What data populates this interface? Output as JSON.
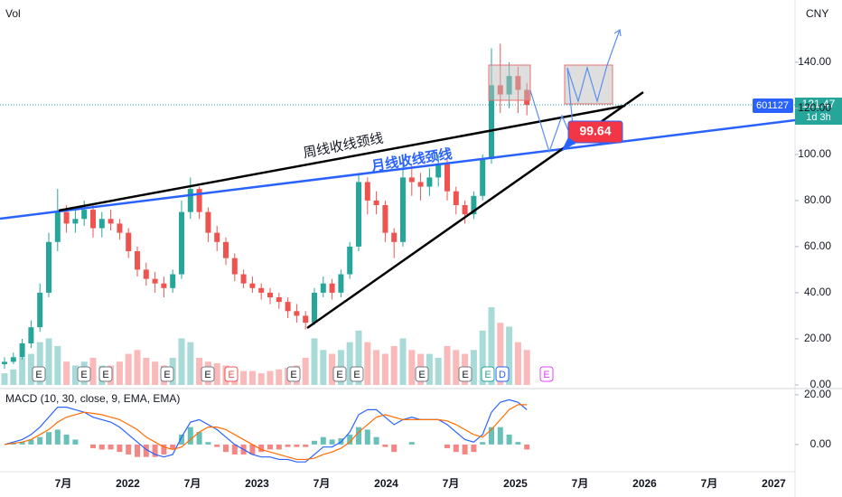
{
  "chart_data": {
    "type": "candlestick",
    "volume_label": "Vol",
    "currency": "CNY",
    "x_labels": [
      "7月",
      "2022",
      "7月",
      "2023",
      "7月",
      "2024",
      "7月",
      "2025",
      "7月",
      "2026",
      "7月",
      "2027"
    ],
    "up_color": "#26a69a",
    "down_color": "#ef5350",
    "ylim": [
      -1.6,
      167
    ],
    "yticks": [
      {
        "value": 0,
        "label": "0.00"
      },
      {
        "value": 20,
        "label": "20.00"
      },
      {
        "value": 40,
        "label": "40.00"
      },
      {
        "value": 60,
        "label": "60.00"
      },
      {
        "value": 80,
        "label": "80.00"
      },
      {
        "value": 100,
        "label": "100.00"
      },
      {
        "value": 120,
        "label": "120.00"
      },
      {
        "value": 140,
        "label": "140.00"
      }
    ],
    "ohlc": {
      "open": [
        9,
        10,
        12,
        18,
        25,
        40,
        62,
        75,
        70,
        72,
        76,
        68,
        72,
        70,
        66,
        58,
        50,
        46,
        44,
        42,
        48,
        75,
        85,
        75,
        66,
        62,
        55,
        48,
        44,
        42,
        40,
        38,
        36,
        32,
        30,
        27,
        40,
        44,
        40,
        48,
        60,
        88,
        80,
        78,
        66,
        62,
        90,
        88,
        86,
        90,
        96,
        84,
        78,
        74,
        82,
        98,
        130,
        126,
        134,
        128
      ],
      "high": [
        12,
        14,
        20,
        28,
        44,
        66,
        85,
        78,
        76,
        80,
        78,
        75,
        76,
        72,
        68,
        60,
        53,
        49,
        47,
        50,
        80,
        90,
        86,
        77,
        69,
        64,
        57,
        50,
        47,
        44,
        42,
        40,
        38,
        35,
        32,
        42,
        47,
        46,
        50,
        62,
        92,
        90,
        84,
        80,
        68,
        100,
        95,
        92,
        94,
        100,
        98,
        86,
        80,
        84,
        100,
        146,
        148,
        140,
        138,
        131
      ],
      "low": [
        7,
        9,
        11,
        16,
        23,
        38,
        58,
        66,
        66,
        69,
        64,
        64,
        67,
        63,
        55,
        47,
        43,
        40,
        38,
        40,
        46,
        72,
        72,
        62,
        58,
        52,
        45,
        42,
        40,
        37,
        35,
        33,
        29,
        27,
        24,
        26,
        38,
        37,
        38,
        46,
        58,
        74,
        74,
        62,
        55,
        60,
        82,
        80,
        82,
        86,
        80,
        74,
        70,
        72,
        80,
        96,
        118,
        120,
        118,
        117
      ],
      "close": [
        10,
        12,
        18,
        25,
        40,
        62,
        75,
        70,
        72,
        76,
        68,
        72,
        70,
        66,
        58,
        50,
        46,
        44,
        42,
        48,
        75,
        85,
        75,
        66,
        62,
        55,
        48,
        44,
        42,
        40,
        38,
        36,
        32,
        30,
        27,
        40,
        44,
        40,
        48,
        60,
        88,
        80,
        78,
        66,
        62,
        90,
        88,
        86,
        90,
        96,
        84,
        78,
        74,
        82,
        98,
        130,
        126,
        134,
        128,
        121.47
      ]
    },
    "volume": {
      "ylim": [
        0,
        100
      ],
      "values": [
        15,
        20,
        35,
        40,
        55,
        60,
        50,
        30,
        25,
        30,
        35,
        25,
        25,
        30,
        40,
        45,
        35,
        30,
        25,
        35,
        60,
        55,
        35,
        30,
        28,
        25,
        20,
        18,
        18,
        15,
        18,
        20,
        22,
        25,
        35,
        60,
        45,
        40,
        45,
        55,
        70,
        55,
        45,
        40,
        50,
        60,
        45,
        40,
        40,
        35,
        50,
        45,
        40,
        45,
        70,
        100,
        80,
        75,
        55,
        45
      ]
    },
    "symbol": "601127",
    "countdown": "1d 3h",
    "annotations": {
      "weekly_neckline": "周线收线颈线",
      "monthly_neckline": "月线收线颈线",
      "price_label": 99.64
    },
    "event_markers": [
      "E",
      "E",
      "E",
      "E",
      "E",
      "E",
      "E",
      "E",
      "E",
      "E",
      "E",
      "E",
      "D",
      "E"
    ],
    "macd": {
      "label": "MACD (10, 30, close, 9, EMA, EMA)",
      "ylim": [
        -10.2,
        22.5
      ],
      "yticks": [
        {
          "value": 0,
          "label": "0.00"
        },
        {
          "value": 20,
          "label": "20.00"
        }
      ],
      "macd": {
        "color": "#2962ff",
        "values": [
          0,
          1,
          2,
          4,
          7,
          11,
          15,
          15,
          14,
          13,
          11,
          10,
          9,
          7,
          4,
          1,
          -2,
          -4,
          -5,
          -4,
          3,
          9,
          10,
          8,
          6,
          3,
          0,
          -2,
          -4,
          -5,
          -5,
          -6,
          -6,
          -7,
          -7,
          -4,
          -1,
          -1,
          1,
          5,
          12,
          14,
          14,
          11,
          8,
          10,
          11,
          10,
          10,
          10,
          8,
          5,
          2,
          1,
          4,
          13,
          17,
          18,
          17,
          14
        ]
      },
      "signal": {
        "color": "#ff6d00",
        "values": [
          0,
          0.5,
          1,
          2,
          4,
          6,
          9,
          11,
          12,
          13,
          12.5,
          12,
          11,
          10,
          8,
          6,
          3,
          1,
          -1,
          -2,
          -1,
          2,
          5,
          7,
          7,
          6,
          4,
          2,
          0,
          -2,
          -3,
          -4,
          -5,
          -6,
          -6,
          -5.5,
          -4,
          -3,
          -1.5,
          1,
          5,
          8,
          11,
          12,
          11,
          10,
          10,
          10,
          10,
          10,
          9.5,
          8,
          6,
          4,
          3,
          6,
          10,
          14,
          16,
          16
        ]
      },
      "histogram": {
        "up_color": "#26a69a",
        "down_color": "#ef5350",
        "values": [
          0,
          0.5,
          1,
          2,
          3,
          5,
          6,
          4,
          2,
          0,
          -1.5,
          -2,
          -2,
          -3,
          -4,
          -5,
          -5,
          -5,
          -4,
          -2,
          4,
          7,
          5,
          1,
          -1,
          -3,
          -4,
          -4,
          -4,
          -3,
          -2,
          -2,
          -1,
          -1,
          -1,
          1.5,
          3,
          2,
          2.5,
          4,
          7,
          6,
          3,
          -1,
          -3,
          0,
          1,
          0,
          0,
          0,
          -1.5,
          -3,
          -4,
          -3,
          1,
          7,
          7,
          4,
          1,
          -2
        ]
      }
    }
  }
}
